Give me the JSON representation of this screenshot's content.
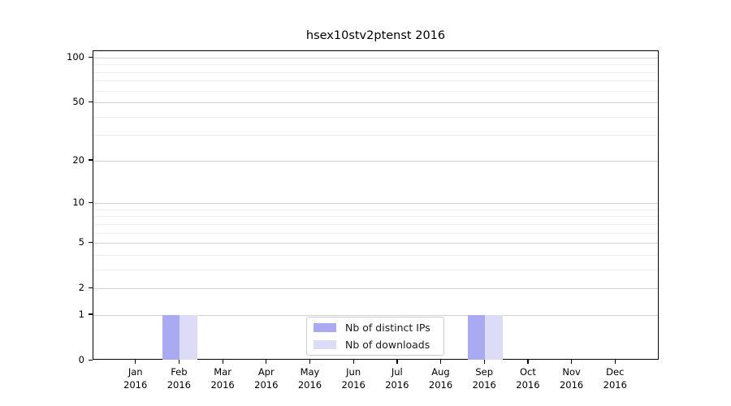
{
  "chart_data": {
    "type": "bar",
    "title": "hsex10stv2ptenst 2016",
    "xlabel": "",
    "ylabel": "",
    "x": {
      "months": [
        "Jan",
        "Feb",
        "Mar",
        "Apr",
        "May",
        "Jun",
        "Jul",
        "Aug",
        "Sep",
        "Oct",
        "Nov",
        "Dec"
      ],
      "year": "2016"
    },
    "series": [
      {
        "name": "Nb of distinct IPs",
        "color": "#aaaaf2",
        "values": [
          0,
          1,
          0,
          0,
          0,
          0,
          0,
          0,
          1,
          0,
          0,
          0
        ]
      },
      {
        "name": "Nb of downloads",
        "color": "#dcdcf8",
        "values": [
          0,
          1,
          0,
          0,
          0,
          0,
          0,
          0,
          1,
          0,
          0,
          0
        ]
      }
    ],
    "yscale": "log1p",
    "ylim": [
      0,
      110
    ],
    "yticks": [
      0,
      1,
      2,
      5,
      10,
      20,
      50,
      100
    ],
    "yticks_minor": [
      3,
      4,
      6,
      7,
      8,
      9,
      30,
      40,
      60,
      70,
      80,
      90
    ],
    "grid": true,
    "legend": {
      "entries": [
        "Nb of distinct IPs",
        "Nb of downloads"
      ],
      "position": "lower center"
    }
  },
  "colors": {
    "background": "#ffffff",
    "bar_distinct_ips": "#aaaaf2",
    "bar_downloads": "#dcdcf8",
    "grid_major": "#d3d3d3",
    "grid_minor": "#ededed",
    "axis": "#000000",
    "legend_border": "#cccccc"
  }
}
